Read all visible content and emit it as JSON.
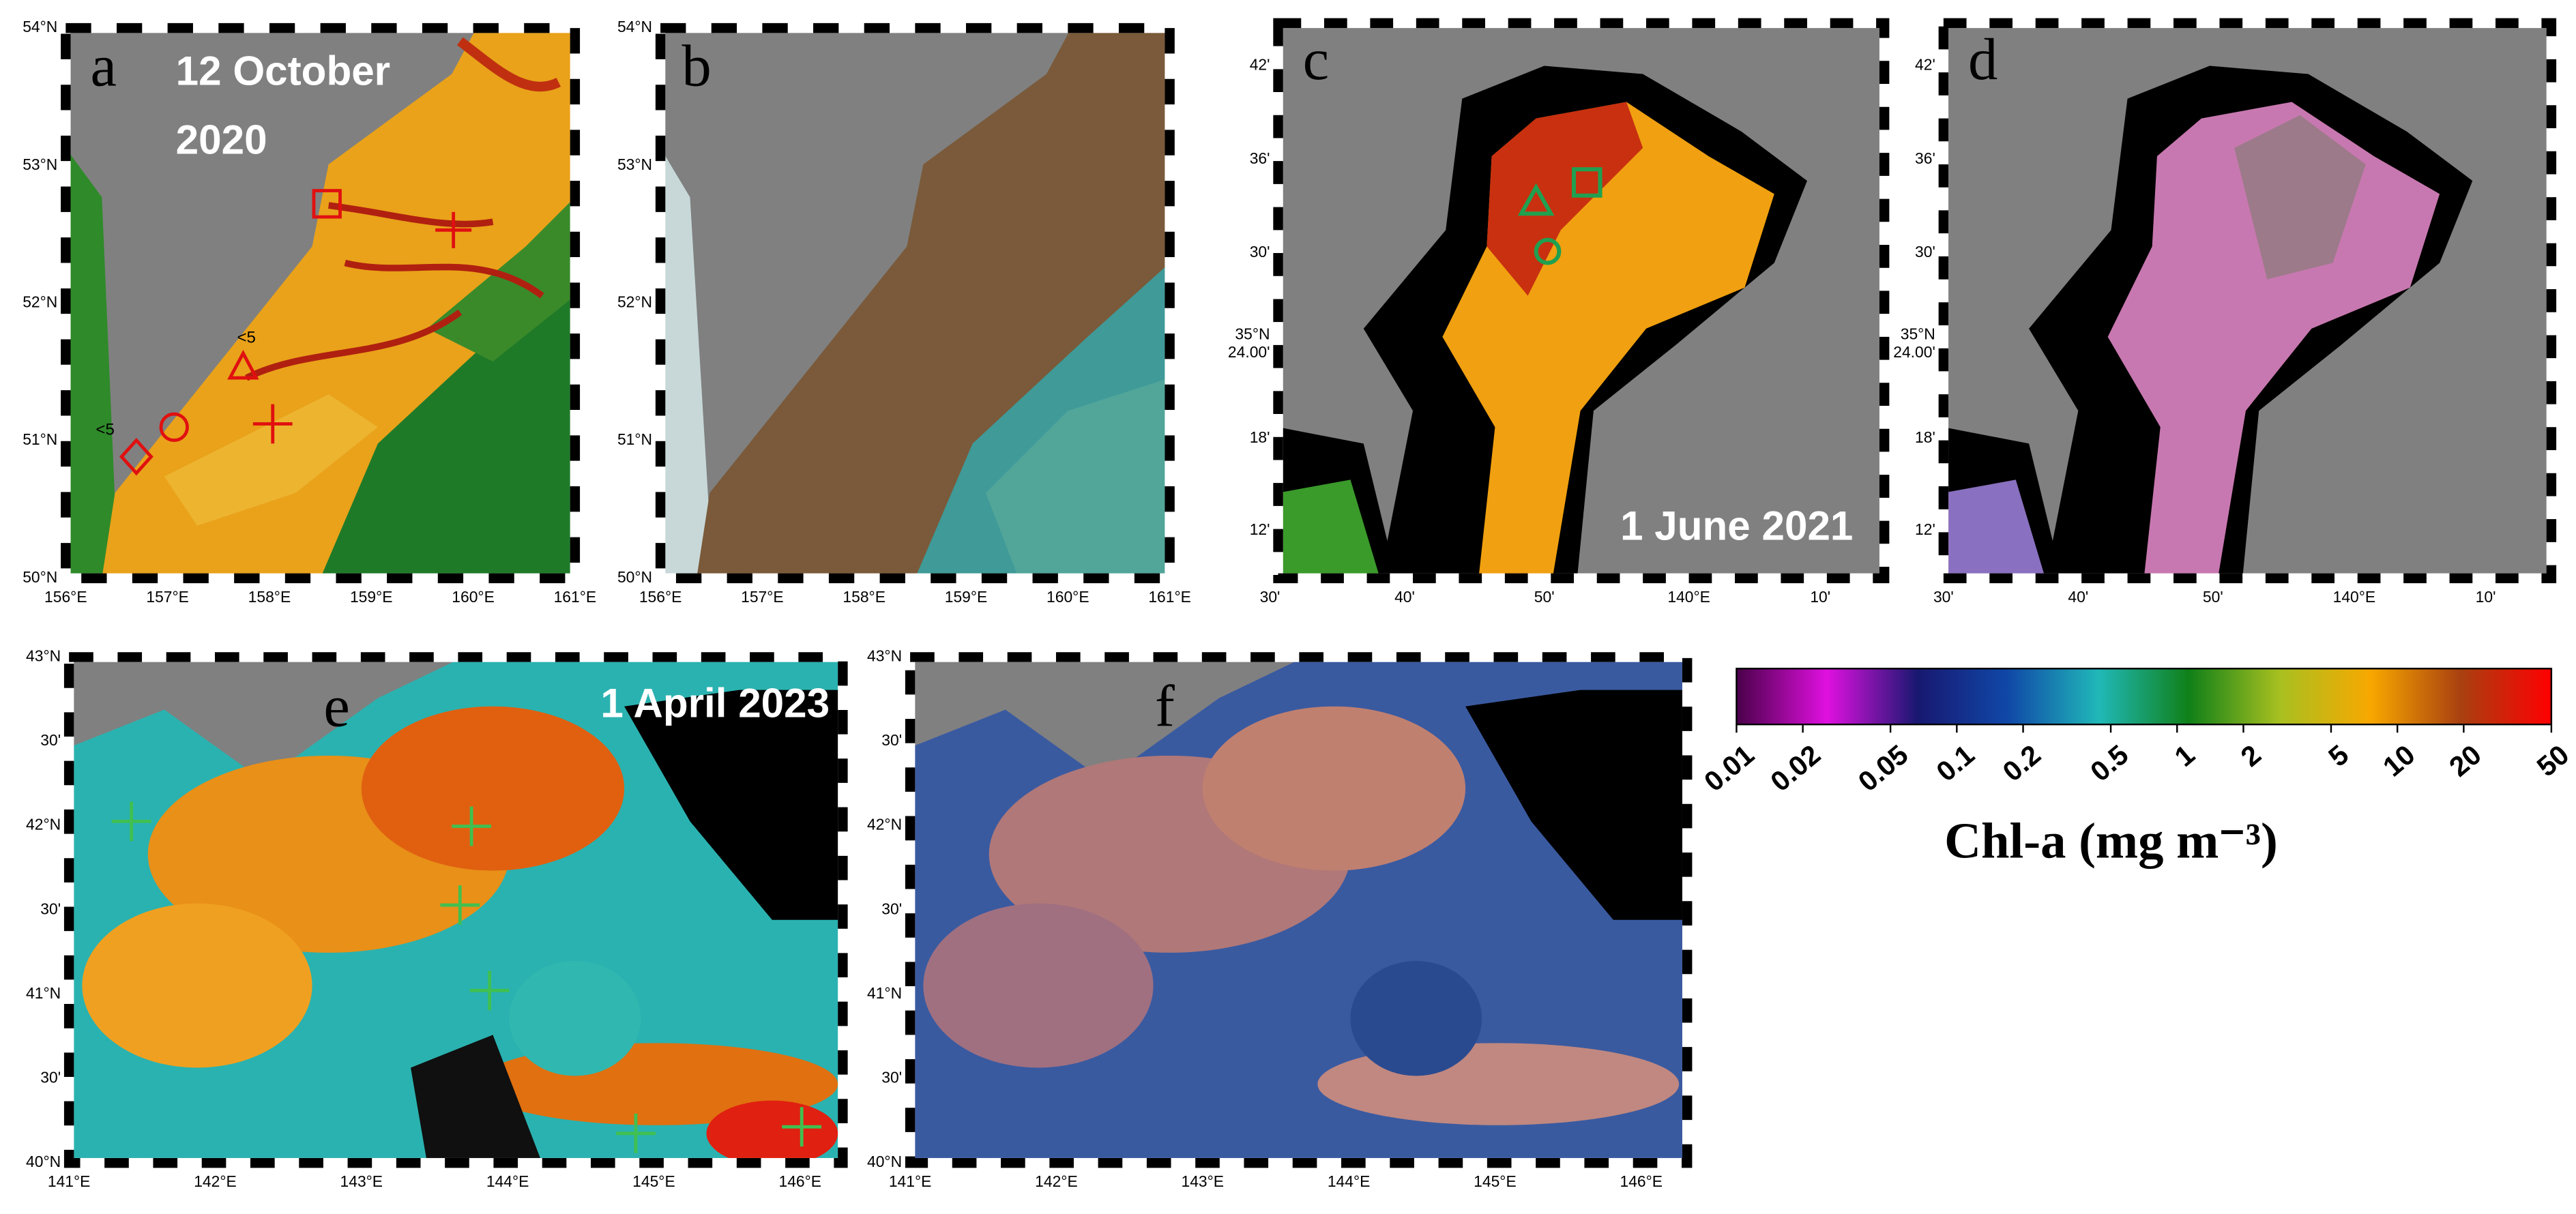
{
  "panels": [
    {
      "letter": "a",
      "date_lines": [
        "12 October",
        "2020"
      ],
      "lat_labels": [
        "50°N",
        "51°N",
        "52°N",
        "53°N",
        "54°N"
      ],
      "lon_labels": [
        "156°E",
        "157°E",
        "158°E",
        "159°E",
        "160°E",
        "161°E"
      ],
      "annotations": [
        "<5",
        "<5"
      ]
    },
    {
      "letter": "b",
      "lat_labels": [
        "50°N",
        "51°N",
        "52°N",
        "53°N",
        "54°N"
      ],
      "lon_labels": [
        "156°E",
        "157°E",
        "158°E",
        "159°E",
        "160°E",
        "161°E"
      ]
    },
    {
      "letter": "c",
      "date_lines": [
        "1 June 2021"
      ],
      "lat_labels": [
        "12'",
        "18'",
        {
          "lines": [
            "35°N",
            "24.00'"
          ]
        },
        "30'",
        "36'",
        "42'"
      ],
      "lon_labels": [
        "30'",
        "40'",
        "50'",
        "140°E",
        "10'"
      ]
    },
    {
      "letter": "d",
      "lat_labels": [
        "12'",
        "18'",
        {
          "lines": [
            "35°N",
            "24.00'"
          ]
        },
        "30'",
        "36'",
        "42'"
      ],
      "lon_labels": [
        "30'",
        "40'",
        "50'",
        "140°E",
        "10'"
      ]
    },
    {
      "letter": "e",
      "date_lines": [
        "1 April 2023"
      ],
      "lat_labels": [
        "40°N",
        "30'",
        "41°N",
        "30'",
        "42°N",
        "30'",
        "43°N"
      ],
      "lon_labels": [
        "141°E",
        "142°E",
        "143°E",
        "144°E",
        "145°E",
        "146°E"
      ]
    },
    {
      "letter": "f",
      "lat_labels": [
        "40°N",
        "30'",
        "41°N",
        "30'",
        "42°N",
        "30'",
        "43°N"
      ],
      "lon_labels": [
        "141°E",
        "142°E",
        "143°E",
        "144°E",
        "145°E",
        "146°E"
      ]
    }
  ],
  "colorbar": {
    "title": "Chl-a (mg m⁻³)",
    "scale": "log",
    "lim": [
      0.01,
      50
    ],
    "ticks": [
      0.01,
      0.02,
      0.05,
      0.1,
      0.2,
      0.5,
      1,
      2,
      5,
      10,
      20,
      50
    ],
    "colors": [
      "#4a004a",
      "#e010e0",
      "#181870",
      "#1048a8",
      "#20b8b8",
      "#108018",
      "#a8c020",
      "#f8a800",
      "#a84010",
      "#ff0000"
    ]
  }
}
